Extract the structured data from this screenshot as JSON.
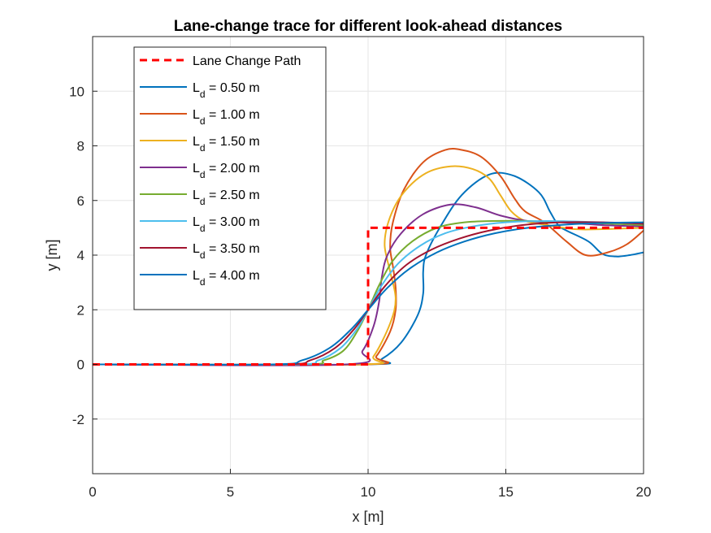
{
  "chart_data": {
    "type": "line",
    "title": "Lane-change trace for different look-ahead distances",
    "xlabel": "x [m]",
    "ylabel": "y [m]",
    "xlim": [
      0,
      20
    ],
    "ylim": [
      -4,
      12
    ],
    "xticks": [
      0,
      5,
      10,
      15,
      20
    ],
    "yticks": [
      -2,
      0,
      2,
      4,
      6,
      8,
      10
    ],
    "grid": true,
    "legend_position": "top-left",
    "series": [
      {
        "name": "Lane Change Path",
        "label_main": "Lane Change Path",
        "label_sub": "",
        "label_rest": "",
        "color": "#FF0000",
        "dashed": true,
        "points": [
          [
            0,
            0
          ],
          [
            10,
            0
          ],
          [
            10,
            5
          ],
          [
            20,
            5
          ]
        ]
      },
      {
        "name": "L_d = 0.50 m",
        "label_main": "L",
        "label_sub": "d",
        "label_rest": " = 0.50 m",
        "color": "#0072BD",
        "dashed": false,
        "points": [
          [
            0,
            0
          ],
          [
            9.9,
            0
          ],
          [
            10.5,
            0.2
          ],
          [
            11.2,
            0.8
          ],
          [
            11.8,
            1.8
          ],
          [
            12,
            2.6
          ],
          [
            12,
            3.4
          ],
          [
            12.1,
            4
          ],
          [
            12.6,
            5
          ],
          [
            13.4,
            6.2
          ],
          [
            14.4,
            6.95
          ],
          [
            15.3,
            6.9
          ],
          [
            16.2,
            6.3
          ],
          [
            16.6,
            5.6
          ],
          [
            16.9,
            5.1
          ],
          [
            17.2,
            4.9
          ],
          [
            18,
            4.5
          ],
          [
            18.5,
            4.05
          ],
          [
            19,
            3.95
          ],
          [
            19.5,
            4
          ],
          [
            20,
            4.1
          ]
        ]
      },
      {
        "name": "L_d = 1.00 m",
        "label_main": "L",
        "label_sub": "d",
        "label_rest": " = 1.00 m",
        "color": "#D95319",
        "dashed": false,
        "points": [
          [
            0,
            0
          ],
          [
            9.9,
            0
          ],
          [
            10.3,
            0.3
          ],
          [
            10.8,
            1.2
          ],
          [
            11,
            2
          ],
          [
            11,
            2.8
          ],
          [
            10.9,
            3.6
          ],
          [
            10.8,
            4.3
          ],
          [
            10.9,
            5.2
          ],
          [
            11.3,
            6.4
          ],
          [
            12,
            7.4
          ],
          [
            12.8,
            7.85
          ],
          [
            13.4,
            7.85
          ],
          [
            14.1,
            7.6
          ],
          [
            14.8,
            6.9
          ],
          [
            15.3,
            6.1
          ],
          [
            15.7,
            5.6
          ],
          [
            16.4,
            5.2
          ],
          [
            17.2,
            4.5
          ],
          [
            17.9,
            4
          ],
          [
            18.7,
            4.1
          ],
          [
            19.4,
            4.4
          ],
          [
            20,
            4.9
          ]
        ]
      },
      {
        "name": "L_d = 1.50 m",
        "label_main": "L",
        "label_sub": "d",
        "label_rest": " = 1.50 m",
        "color": "#EDB120",
        "dashed": false,
        "points": [
          [
            0,
            0
          ],
          [
            9.7,
            0
          ],
          [
            10.2,
            0.3
          ],
          [
            10.8,
            1.5
          ],
          [
            11,
            2.4
          ],
          [
            10.8,
            3.4
          ],
          [
            10.6,
            4.4
          ],
          [
            10.8,
            5.4
          ],
          [
            11.3,
            6.3
          ],
          [
            12.1,
            7
          ],
          [
            13,
            7.25
          ],
          [
            13.8,
            7.15
          ],
          [
            14.4,
            6.8
          ],
          [
            14.8,
            6.2
          ],
          [
            15.2,
            5.6
          ],
          [
            15.7,
            5.25
          ],
          [
            16.5,
            5.1
          ],
          [
            17.5,
            4.95
          ],
          [
            18.5,
            4.95
          ],
          [
            20,
            5
          ]
        ]
      },
      {
        "name": "L_d = 2.00 m",
        "label_main": "L",
        "label_sub": "d",
        "label_rest": " = 2.00 m",
        "color": "#7E2F8E",
        "dashed": false,
        "points": [
          [
            0,
            0
          ],
          [
            9.2,
            0
          ],
          [
            9.8,
            0.5
          ],
          [
            10.2,
            1.4
          ],
          [
            10.4,
            2.3
          ],
          [
            10.5,
            3.2
          ],
          [
            10.7,
            4
          ],
          [
            11.2,
            4.8
          ],
          [
            12,
            5.5
          ],
          [
            13,
            5.85
          ],
          [
            13.9,
            5.75
          ],
          [
            14.8,
            5.45
          ],
          [
            15.8,
            5.25
          ],
          [
            17,
            5.2
          ],
          [
            18.5,
            5.1
          ],
          [
            20,
            5.05
          ]
        ]
      },
      {
        "name": "L_d = 2.50 m",
        "label_main": "L",
        "label_sub": "d",
        "label_rest": " = 2.50 m",
        "color": "#77AC30",
        "dashed": false,
        "points": [
          [
            0,
            0
          ],
          [
            7.5,
            0
          ],
          [
            8.4,
            0.15
          ],
          [
            9.1,
            0.5
          ],
          [
            9.6,
            1.2
          ],
          [
            10,
            2
          ],
          [
            10.4,
            2.9
          ],
          [
            10.9,
            3.8
          ],
          [
            11.6,
            4.5
          ],
          [
            12.5,
            5
          ],
          [
            13.5,
            5.2
          ],
          [
            14.5,
            5.25
          ],
          [
            15.8,
            5.25
          ],
          [
            17.5,
            5.2
          ],
          [
            20,
            5.1
          ]
        ]
      },
      {
        "name": "L_d = 3.00 m",
        "label_main": "L",
        "label_sub": "d",
        "label_rest": " = 3.00 m",
        "color": "#4DBEEE",
        "dashed": false,
        "points": [
          [
            0,
            0
          ],
          [
            7.2,
            0
          ],
          [
            8.2,
            0.15
          ],
          [
            9,
            0.6
          ],
          [
            9.6,
            1.3
          ],
          [
            10,
            2
          ],
          [
            10.5,
            2.9
          ],
          [
            11.1,
            3.7
          ],
          [
            11.9,
            4.35
          ],
          [
            12.8,
            4.8
          ],
          [
            13.8,
            5.05
          ],
          [
            15,
            5.2
          ],
          [
            16.5,
            5.25
          ],
          [
            18.5,
            5.2
          ],
          [
            20,
            5.15
          ]
        ]
      },
      {
        "name": "L_d = 3.50 m",
        "label_main": "L",
        "label_sub": "d",
        "label_rest": " = 3.50 m",
        "color": "#A2142F",
        "dashed": false,
        "points": [
          [
            0,
            0
          ],
          [
            6.8,
            0
          ],
          [
            7.9,
            0.15
          ],
          [
            8.8,
            0.6
          ],
          [
            9.5,
            1.3
          ],
          [
            10,
            2
          ],
          [
            10.6,
            2.85
          ],
          [
            11.4,
            3.65
          ],
          [
            12.3,
            4.2
          ],
          [
            13.3,
            4.6
          ],
          [
            14.4,
            4.9
          ],
          [
            15.6,
            5.1
          ],
          [
            17,
            5.2
          ],
          [
            18.5,
            5.2
          ],
          [
            20,
            5.15
          ]
        ]
      },
      {
        "name": "L_d = 4.00 m",
        "label_main": "L",
        "label_sub": "d",
        "label_rest": " = 4.00 m",
        "color": "#0072BD",
        "dashed": false,
        "points": [
          [
            0,
            0
          ],
          [
            6.5,
            0
          ],
          [
            7.6,
            0.15
          ],
          [
            8.6,
            0.6
          ],
          [
            9.4,
            1.3
          ],
          [
            10,
            2
          ],
          [
            10.7,
            2.8
          ],
          [
            11.5,
            3.5
          ],
          [
            12.5,
            4.1
          ],
          [
            13.5,
            4.5
          ],
          [
            14.6,
            4.8
          ],
          [
            15.8,
            5
          ],
          [
            17.2,
            5.12
          ],
          [
            18.6,
            5.18
          ],
          [
            20,
            5.2
          ]
        ]
      }
    ]
  }
}
